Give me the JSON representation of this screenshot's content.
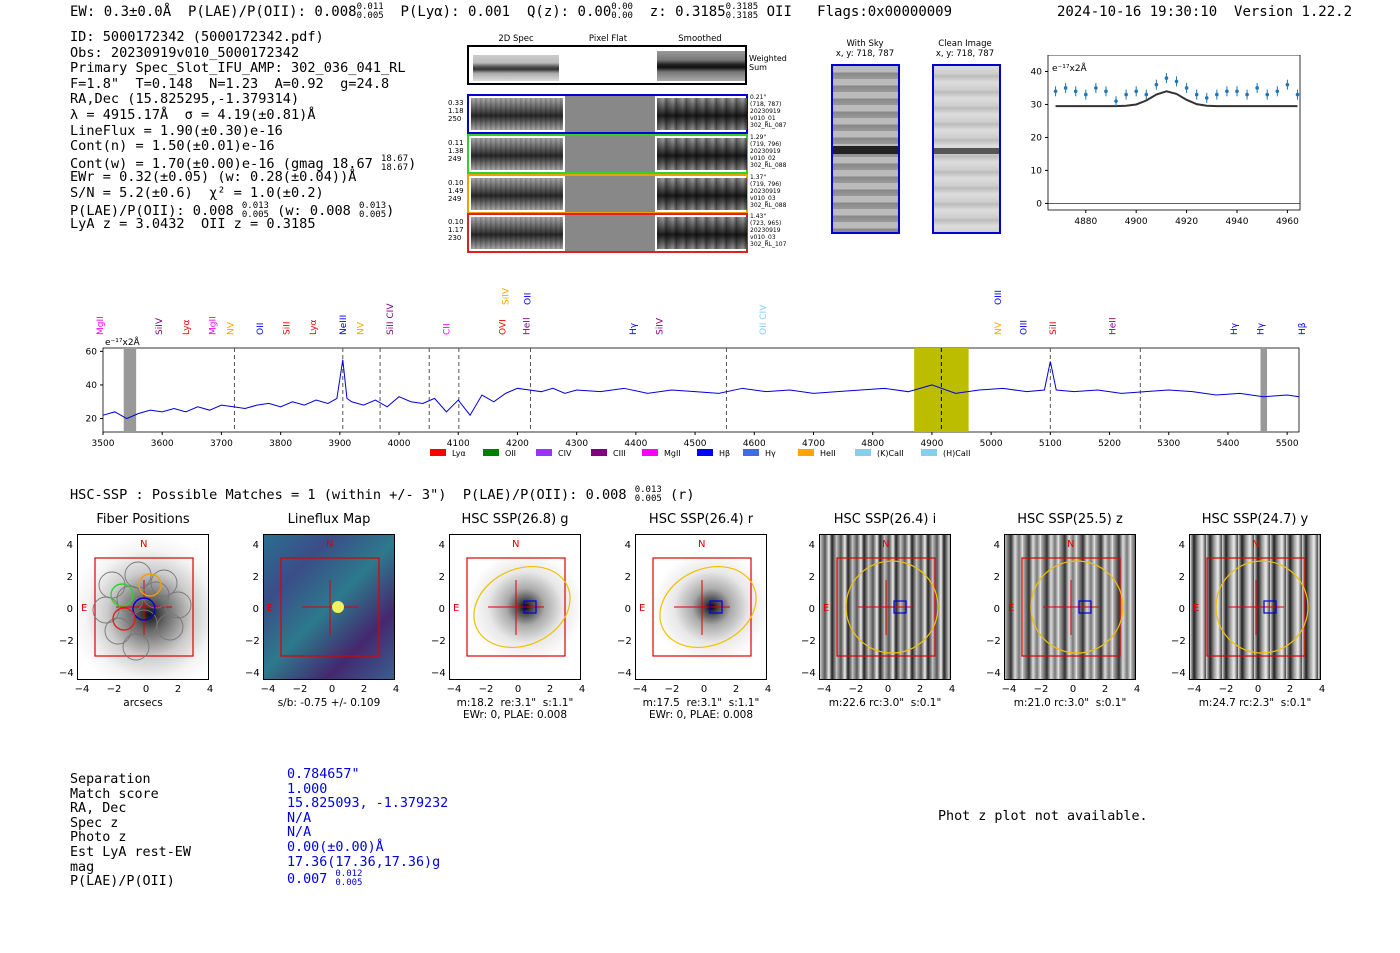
{
  "header": {
    "left": "EW: 0.3±0.0Å  P(LAE)/P(OII): 0.008",
    "plae_up": "0.011",
    "plae_dn": "0.005",
    "plya": "  P(Lyα): 0.001  Q(z): 0.00",
    "qz_up": "0.00",
    "qz_dn": "0.00",
    "z": "  z: 0.3185",
    "z_up": "0.3185",
    "z_dn": "0.3185",
    "oii_flags": " OII   Flags:0x00000009",
    "datetime": "2024-10-16 19:30:10",
    "version": "Version 1.22.2"
  },
  "info": {
    "id": "ID: 5000172342 (5000172342.pdf)",
    "obs": "Obs: 20230919v010_5000172342",
    "primary": "Primary Spec_Slot_IFU_AMP: 302_036_041_RL",
    "params": "F=1.8\"  T=0.148  N=1.23  A=0.92  g=24.8",
    "radec": "RA,Dec (15.825295,-1.379314)",
    "lambda": "λ = 4915.17Å  σ = 4.19(±0.81)Å",
    "lineflux": "LineFlux = 1.90(±0.30)e-16",
    "contn": "Cont(n) = 1.50(±0.01)e-16",
    "contw": "Cont(w) = 1.70(±0.00)e-16 (gmag 18.67",
    "contw_up": "18.67",
    "contw_dn": "18.67",
    "ewr": "EWr = 0.32(±0.05) (w: 0.28(±0.04))Å",
    "sn": "S/N = 5.2(±0.6)  χ² = 1.0(±0.2)",
    "plae": "P(LAE)/P(OII): 0.008",
    "plae_up": "0.013",
    "plae_dn": "0.005",
    "plae_w": "(w: 0.008",
    "plae_w_up": "0.013",
    "plae_w_dn": "0.005",
    "lyaz": "LyA z = 3.0432  OII z = 0.3185"
  },
  "spec2d": {
    "col_titles": [
      "2D Spec",
      "Pixel Flat",
      "Smoothed"
    ],
    "weighted_label": "Weighted\nSum",
    "rows": [
      {
        "left": "0.33\n1.18\n250",
        "right": "0.21\"\n(718, 787)\n20230919\nv010_01\n302_RL_087",
        "color": "#0000d0"
      },
      {
        "left": "0.11\n1.38\n249",
        "right": "1.29\"\n(719, 796)\n20230919\nv010_02\n302_RL_088",
        "color": "#30d030"
      },
      {
        "left": "0.10\n1.49\n249",
        "right": "1.37\"\n(719, 796)\n20230919\nv010_03\n302_RL_088",
        "color": "#f0a000"
      },
      {
        "left": "0.10\n1.17\n230",
        "right": "1.43\"\n(723, 965)\n20230919\nv010_03\n302_RL_107",
        "color": "#e02020"
      }
    ]
  },
  "cutouts": {
    "with_sky": "With Sky\nx, y: 718, 787",
    "clean": "Clean Image\nx, y: 718, 787"
  },
  "zoom_plot": {
    "unit": "e⁻¹⁷x2Å",
    "xticks": [
      "4880",
      "4900",
      "4920",
      "4940",
      "4960"
    ],
    "yticks": [
      "0",
      "10",
      "20",
      "30",
      "40"
    ]
  },
  "full_spec": {
    "unit": "e⁻¹⁷x2Å",
    "xticks": [
      "3500",
      "3600",
      "3700",
      "3800",
      "3900",
      "4000",
      "4100",
      "4200",
      "4300",
      "4400",
      "4500",
      "4600",
      "4700",
      "4800",
      "4900",
      "5000",
      "5100",
      "5200",
      "5300",
      "5400",
      "5500"
    ],
    "yticks": [
      "20",
      "40",
      "60"
    ],
    "line_labels_row1": [
      "SiIV",
      "OII"
    ],
    "line_labels_row2": [
      "MgII",
      "SiIV",
      "Lyα",
      "MgII",
      "NV",
      "OII",
      "SiII",
      "Lyα",
      "NeIII",
      "NV",
      "SiII CIV",
      "CII",
      "OVI",
      "HeII",
      "Hγ",
      "SiIV",
      "OII CIV",
      "NV",
      "OIII",
      "SiII",
      "HeII",
      "Hγ",
      "Hγ",
      "Hβ"
    ],
    "oiii_top": "OIII",
    "legend": [
      "Lyα",
      "OII",
      "CIV",
      "CIII",
      "MgII",
      "Hβ",
      "Hγ",
      "HeII",
      "(K)CaII",
      "(H)CaII"
    ]
  },
  "chart_data": [
    {
      "type": "line",
      "title": "",
      "xlabel": "",
      "ylabel": "e-17x2Å",
      "xlim": [
        4865,
        4965
      ],
      "ylim": [
        -2,
        45
      ],
      "x": [
        4868,
        4872,
        4876,
        4880,
        4884,
        4888,
        4892,
        4896,
        4900,
        4904,
        4908,
        4912,
        4916,
        4920,
        4924,
        4928,
        4932,
        4936,
        4940,
        4944,
        4948,
        4952,
        4956,
        4960,
        4964
      ],
      "series": [
        {
          "name": "data",
          "values": [
            34,
            35,
            34,
            33,
            35,
            34,
            31,
            33,
            34,
            33,
            36,
            38,
            37,
            35,
            33,
            32,
            33,
            34,
            34,
            33,
            35,
            33,
            34,
            36,
            33
          ]
        },
        {
          "name": "model",
          "values": [
            29.5,
            29.5,
            29.5,
            29.5,
            29.5,
            29.5,
            29.5,
            29.6,
            30,
            31.2,
            33,
            34,
            33.2,
            31.4,
            30.1,
            29.6,
            29.5,
            29.5,
            29.5,
            29.5,
            29.5,
            29.5,
            29.5,
            29.5,
            29.5
          ]
        }
      ]
    },
    {
      "type": "line",
      "title": "",
      "xlabel": "",
      "ylabel": "e-17x2Å",
      "xlim": [
        3500,
        5520
      ],
      "ylim": [
        12,
        62
      ],
      "x": [
        3500,
        3520,
        3540,
        3560,
        3580,
        3600,
        3620,
        3640,
        3660,
        3680,
        3700,
        3720,
        3740,
        3760,
        3780,
        3800,
        3820,
        3840,
        3860,
        3880,
        3895,
        3905,
        3912,
        3920,
        3940,
        3960,
        3980,
        4000,
        4020,
        4040,
        4060,
        4080,
        4100,
        4120,
        4140,
        4160,
        4180,
        4200,
        4220,
        4240,
        4260,
        4280,
        4300,
        4340,
        4380,
        4420,
        4460,
        4500,
        4540,
        4580,
        4620,
        4660,
        4700,
        4740,
        4780,
        4820,
        4860,
        4900,
        4940,
        4980,
        5020,
        5060,
        5090,
        5100,
        5110,
        5140,
        5180,
        5220,
        5260,
        5300,
        5340,
        5380,
        5420,
        5460,
        5500,
        5520
      ],
      "series": [
        {
          "name": "spectrum",
          "values": [
            22,
            24,
            20,
            23,
            25,
            24,
            26,
            24,
            27,
            25,
            28,
            27,
            26,
            28,
            29,
            27,
            30,
            28,
            31,
            29,
            32,
            55,
            32,
            30,
            28,
            31,
            27,
            33,
            30,
            29,
            32,
            24,
            31,
            22,
            34,
            30,
            35,
            38,
            37,
            36,
            38,
            35,
            37,
            36,
            38,
            35,
            37,
            36,
            35,
            38,
            36,
            37,
            35,
            36,
            37,
            38,
            36,
            40,
            35,
            37,
            38,
            36,
            37,
            54,
            37,
            36,
            37,
            35,
            36,
            37,
            36,
            34,
            35,
            33,
            34,
            33
          ]
        }
      ]
    }
  ],
  "hsc": {
    "line": "HSC-SSP : Possible Matches = 1 (within +/- 3\")  P(LAE)/P(OII): 0.008",
    "up": "0.013",
    "dn": "0.005",
    "band": " (r)"
  },
  "panels": [
    {
      "title": "Fiber Positions",
      "cap1": "arcsecs",
      "cap2": ""
    },
    {
      "title": "Lineflux Map",
      "cap1": "s/b: -0.75 +/- 0.109",
      "cap2": ""
    },
    {
      "title": "HSC SSP(26.8) g",
      "cap1": "m:18.2  re:3.1\"  s:1.1\"",
      "cap2": "EWr: 0, PLAE: 0.008"
    },
    {
      "title": "HSC SSP(26.4) r",
      "cap1": "m:17.5  re:3.1\"  s:1.1\"",
      "cap2": "EWr: 0, PLAE: 0.008"
    },
    {
      "title": "HSC SSP(26.4) i",
      "cap1": "m:22.6 rc:3.0\"  s:0.1\"",
      "cap2": ""
    },
    {
      "title": "HSC SSP(25.5) z",
      "cap1": "m:21.0 rc:3.0\"  s:0.1\"",
      "cap2": ""
    },
    {
      "title": "HSC SSP(24.7) y",
      "cap1": "m:24.7 rc:2.3\"  s:0.1\"",
      "cap2": ""
    }
  ],
  "panel_ticks": [
    "4",
    "2",
    "0",
    "−2",
    "−4"
  ],
  "panel_xticks": [
    "−4",
    "−2",
    "0",
    "2",
    "4"
  ],
  "compass": {
    "n": "N",
    "e": "E"
  },
  "match": {
    "labels": [
      "Separation",
      "Match score",
      "RA, Dec",
      "Spec z",
      "Photo z",
      "Est LyA rest-EW",
      "mag",
      "P(LAE)/P(OII)"
    ],
    "values": [
      "0.784657\"",
      "1.000",
      "15.825093, -1.379232",
      "N/A",
      "N/A",
      "0.00(±0.00)Å",
      "17.36(17.36,17.36)g",
      "0.007"
    ],
    "plae_up": "0.012",
    "plae_dn": "0.005"
  },
  "photz": "Phot z plot not available."
}
